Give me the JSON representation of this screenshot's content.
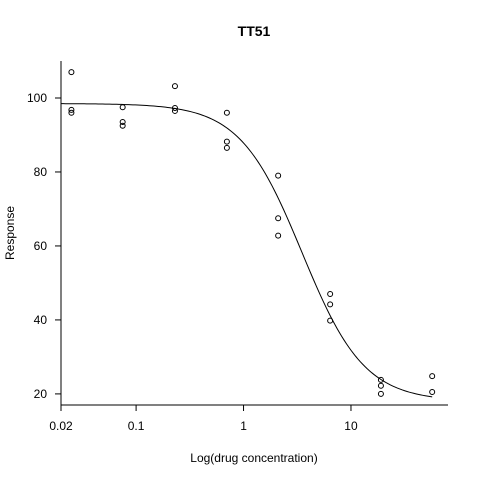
{
  "chart_data": {
    "type": "scatter",
    "title": "TT51",
    "xlabel": "Log(drug concentration)",
    "ylabel": "Response",
    "x_scale": "log",
    "xlim": [
      0.02,
      80
    ],
    "ylim": [
      17,
      110
    ],
    "x_ticks": [
      {
        "value": 0.02,
        "label": "0.02"
      },
      {
        "value": 0.1,
        "label": "0.1"
      },
      {
        "value": 1,
        "label": "1"
      },
      {
        "value": 10,
        "label": "10"
      }
    ],
    "y_ticks": [
      {
        "value": 20,
        "label": "20"
      },
      {
        "value": 40,
        "label": "40"
      },
      {
        "value": 60,
        "label": "60"
      },
      {
        "value": 80,
        "label": "80"
      },
      {
        "value": 100,
        "label": "100"
      }
    ],
    "grid": false,
    "series": [
      {
        "points": [
          {
            "x": 0.025,
            "y": 107.0
          },
          {
            "x": 0.025,
            "y": 96.8
          },
          {
            "x": 0.025,
            "y": 96.0
          },
          {
            "x": 0.075,
            "y": 97.5
          },
          {
            "x": 0.075,
            "y": 93.5
          },
          {
            "x": 0.075,
            "y": 92.5
          },
          {
            "x": 0.23,
            "y": 103.2
          },
          {
            "x": 0.23,
            "y": 97.3
          },
          {
            "x": 0.23,
            "y": 96.5
          },
          {
            "x": 0.7,
            "y": 96.0
          },
          {
            "x": 0.7,
            "y": 88.2
          },
          {
            "x": 0.7,
            "y": 86.5
          },
          {
            "x": 2.1,
            "y": 79.0
          },
          {
            "x": 2.1,
            "y": 67.5
          },
          {
            "x": 2.1,
            "y": 62.8
          },
          {
            "x": 6.4,
            "y": 47.0
          },
          {
            "x": 6.4,
            "y": 44.2
          },
          {
            "x": 6.4,
            "y": 39.8
          },
          {
            "x": 19.0,
            "y": 23.8
          },
          {
            "x": 19.0,
            "y": 22.2
          },
          {
            "x": 19.0,
            "y": 20.0
          },
          {
            "x": 57.0,
            "y": 24.8
          },
          {
            "x": 57.0,
            "y": 20.5
          }
        ]
      }
    ],
    "fit_curve": {
      "model": "four-parameter logistic",
      "top": 98.5,
      "bottom": 18.0,
      "ec50": 3.5,
      "hill": 1.5,
      "x_range": [
        0.02,
        57.0
      ]
    }
  }
}
